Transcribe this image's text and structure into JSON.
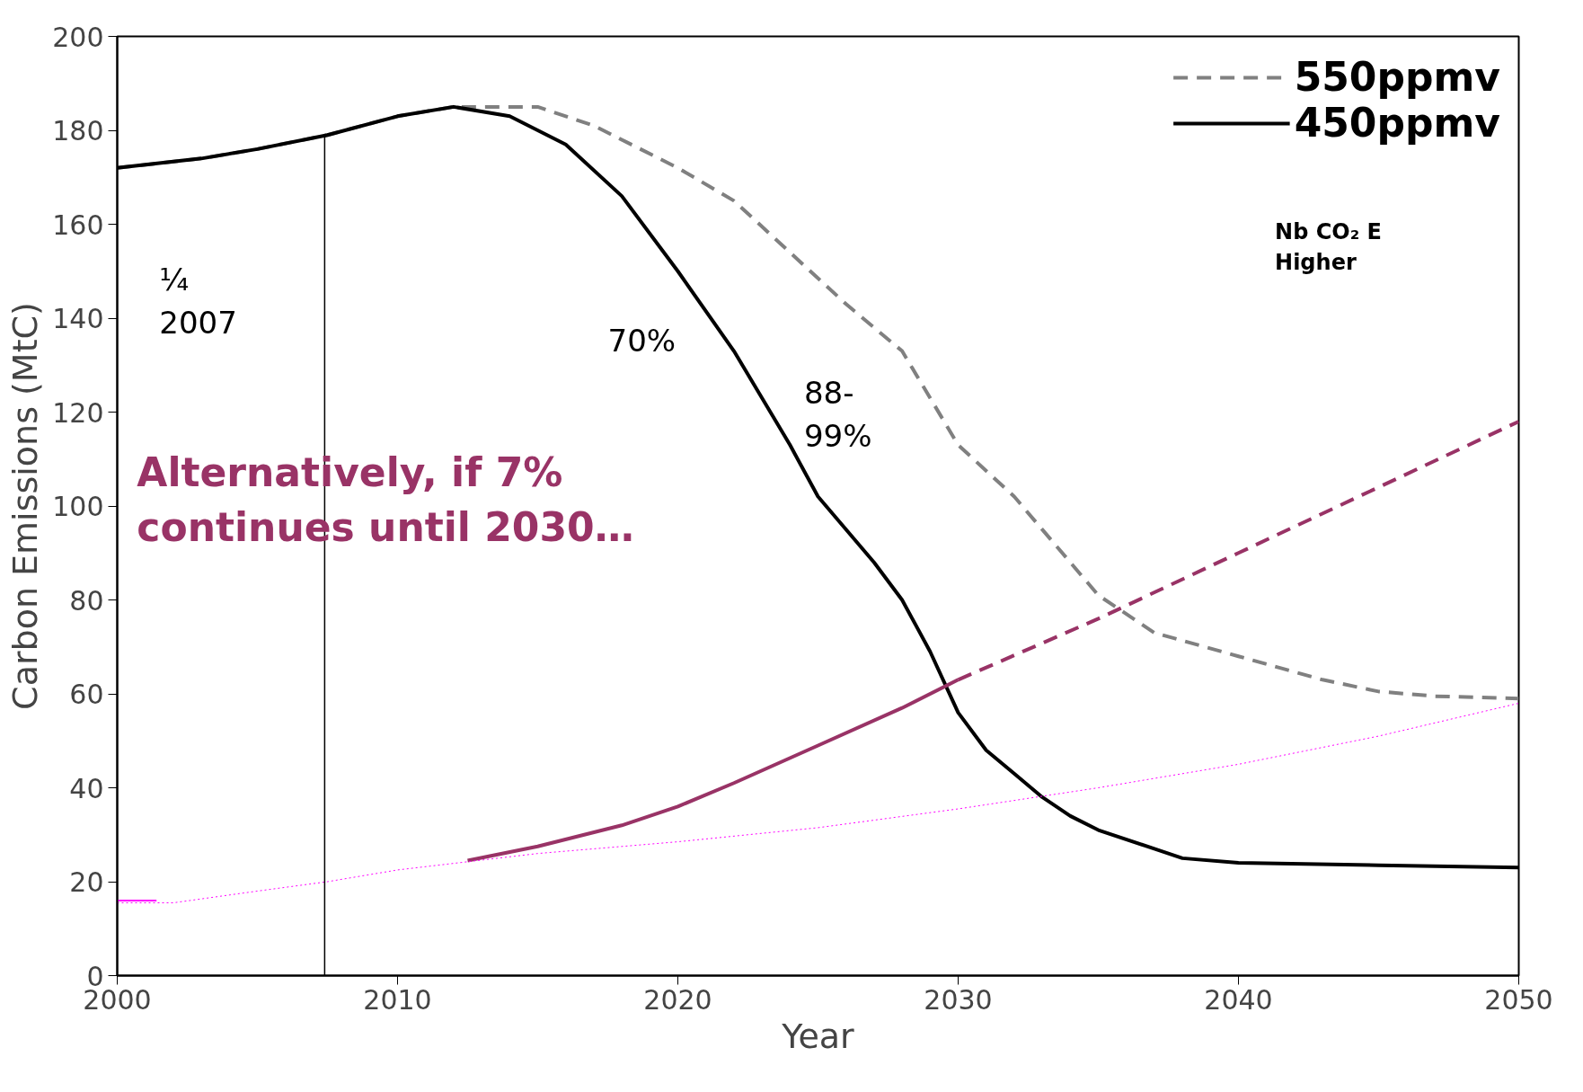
{
  "chart_data": {
    "type": "line",
    "xlabel": "Year",
    "ylabel": "Carbon Emissions (MtC)",
    "xlim": [
      2000,
      2050
    ],
    "ylim": [
      0,
      200
    ],
    "xticks": [
      2000,
      2010,
      2020,
      2030,
      2040,
      2050
    ],
    "yticks": [
      0,
      20,
      40,
      60,
      80,
      100,
      120,
      140,
      160,
      180,
      200
    ],
    "grid": false,
    "legend": "top right",
    "marker": "none",
    "series": [
      {
        "name": "550ppmv",
        "color": "#808080",
        "line_style": "dashed",
        "x": [
          2000,
          2003,
          2005,
          2007.5,
          2010,
          2012,
          2015,
          2017,
          2020,
          2022,
          2024,
          2026,
          2028,
          2030,
          2032,
          2033,
          2035,
          2037,
          2040,
          2043,
          2045,
          2047,
          2050
        ],
        "values": [
          172,
          174,
          176,
          179,
          183,
          185,
          185,
          181,
          172,
          165,
          154,
          143,
          133,
          113,
          102,
          95,
          81,
          73,
          68,
          63,
          60.5,
          59.5,
          59
        ]
      },
      {
        "name": "450ppmv",
        "color": "#000000",
        "line_style": "solid",
        "x": [
          2000,
          2003,
          2005,
          2007.5,
          2010,
          2012,
          2014,
          2016,
          2018,
          2020,
          2022,
          2023,
          2024,
          2025,
          2027,
          2028,
          2029,
          2030,
          2031,
          2032,
          2033,
          2034,
          2035,
          2037,
          2038,
          2040,
          2045,
          2050
        ],
        "values": [
          172,
          174,
          176,
          179,
          183,
          185,
          183,
          177,
          166,
          150,
          133,
          123,
          113,
          102,
          88,
          80,
          69,
          56,
          48,
          43,
          38,
          34,
          31,
          27,
          25,
          24,
          23.5,
          23
        ]
      },
      {
        "color": "#993366",
        "line_style": "solid",
        "x": [
          2012.5,
          2015,
          2018,
          2020,
          2022,
          2025,
          2028,
          2030
        ],
        "values": [
          24.5,
          27.5,
          32,
          36,
          41,
          49,
          57,
          63
        ]
      },
      {
        "color": "#993366",
        "line_style": "dashed",
        "x": [
          2030,
          2035,
          2040,
          2045,
          2050
        ],
        "values": [
          63,
          76,
          90,
          104,
          118
        ]
      },
      {
        "color": "#ff00ff",
        "line_style": "dotted",
        "x": [
          2000,
          2002,
          2005,
          2007.5,
          2010,
          2015,
          2020,
          2025,
          2030,
          2035,
          2040,
          2045,
          2050
        ],
        "values": [
          15.5,
          15.5,
          18,
          20,
          22.5,
          26,
          28.5,
          31.5,
          35.5,
          40,
          45,
          51,
          58
        ]
      },
      {
        "color": "#ff00ff",
        "line_style": "solid",
        "x": [
          2000,
          2001.4
        ],
        "values": [
          16,
          16
        ]
      }
    ],
    "ref_lines": [
      {
        "axis": "x",
        "value": 2007.4,
        "color": "#000000"
      }
    ],
    "annotations": [
      "¼\n2007",
      "70%",
      "88-\n99%",
      "Alternatively, if 7%\ncontinues until 2030…",
      "Nb CO₂ E\nHigher"
    ]
  }
}
